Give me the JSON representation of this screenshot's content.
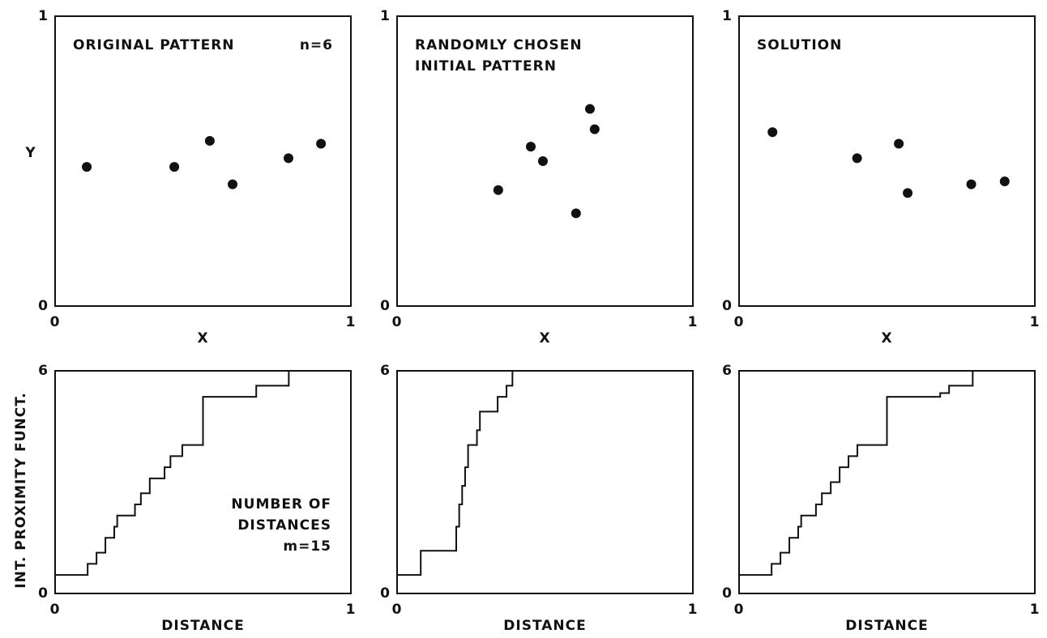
{
  "chart_data": [
    {
      "type": "scatter",
      "title": [
        "ORIGINAL PATTERN"
      ],
      "annotation": [
        "n=6"
      ],
      "xlabel": "X",
      "ylabel": "Y",
      "x": [
        0.107,
        0.403,
        0.523,
        0.6,
        0.789,
        0.899
      ],
      "values": [
        0.48,
        0.48,
        0.57,
        0.42,
        0.51,
        0.56
      ],
      "xlim": [
        0,
        1
      ],
      "ylim": [
        0,
        1
      ],
      "xticks": [
        0,
        1
      ],
      "yticks": [
        0,
        1
      ],
      "color": "#111111"
    },
    {
      "type": "scatter",
      "title": [
        "RANDOMLY CHOSEN",
        "INITIAL PATTERN"
      ],
      "xlabel": "X",
      "x": [
        0.342,
        0.452,
        0.493,
        0.605,
        0.652,
        0.668
      ],
      "values": [
        0.4,
        0.55,
        0.5,
        0.32,
        0.68,
        0.61
      ],
      "xlim": [
        0,
        1
      ],
      "ylim": [
        0,
        1
      ],
      "xticks": [
        0,
        1
      ],
      "yticks": [
        0,
        1
      ],
      "color": "#111111"
    },
    {
      "type": "scatter",
      "title": [
        "SOLUTION"
      ],
      "xlabel": "X",
      "x": [
        0.113,
        0.399,
        0.54,
        0.57,
        0.785,
        0.898
      ],
      "values": [
        0.6,
        0.51,
        0.56,
        0.39,
        0.42,
        0.43
      ],
      "xlim": [
        0,
        1
      ],
      "ylim": [
        0,
        1
      ],
      "xticks": [
        0,
        1
      ],
      "yticks": [
        0,
        1
      ],
      "color": "#111111"
    },
    {
      "type": "step",
      "annotation": [
        "NUMBER OF",
        "DISTANCES",
        "m=15"
      ],
      "xlabel": "DISTANCE",
      "ylabel": "INT. PROXIMITY FUNCT.",
      "x": [
        0,
        0.11,
        0.14,
        0.17,
        0.2,
        0.21,
        0.27,
        0.29,
        0.32,
        0.37,
        0.39,
        0.43,
        0.5,
        0.68,
        0.79
      ],
      "values": [
        0.5,
        0.8,
        1.1,
        1.5,
        1.8,
        2.1,
        2.4,
        2.7,
        3.1,
        3.4,
        3.7,
        4.0,
        5.3,
        5.6,
        6.0
      ],
      "xlim": [
        0,
        1
      ],
      "ylim": [
        0,
        6
      ],
      "xticks": [
        0,
        1
      ],
      "yticks": [
        0,
        6
      ],
      "color": "#111111"
    },
    {
      "type": "step",
      "xlabel": "DISTANCE",
      "x": [
        0,
        0.08,
        0.2,
        0.21,
        0.22,
        0.23,
        0.24,
        0.27,
        0.28,
        0.34,
        0.37,
        0.39
      ],
      "values": [
        0.5,
        1.15,
        1.8,
        2.4,
        2.9,
        3.4,
        4.0,
        4.4,
        4.9,
        5.3,
        5.6,
        6.0
      ],
      "xlim": [
        0,
        1
      ],
      "ylim": [
        0,
        6
      ],
      "xticks": [
        0,
        1
      ],
      "yticks": [
        0,
        6
      ],
      "color": "#111111"
    },
    {
      "type": "step",
      "xlabel": "DISTANCE",
      "x": [
        0,
        0.11,
        0.14,
        0.17,
        0.2,
        0.21,
        0.26,
        0.28,
        0.31,
        0.34,
        0.37,
        0.4,
        0.5,
        0.68,
        0.71,
        0.79
      ],
      "values": [
        0.5,
        0.8,
        1.1,
        1.5,
        1.8,
        2.1,
        2.4,
        2.7,
        3.0,
        3.4,
        3.7,
        4.0,
        5.3,
        5.4,
        5.6,
        6.0
      ],
      "xlim": [
        0,
        1
      ],
      "ylim": [
        0,
        6
      ],
      "xticks": [
        0,
        1
      ],
      "yticks": [
        0,
        6
      ],
      "color": "#111111"
    }
  ]
}
